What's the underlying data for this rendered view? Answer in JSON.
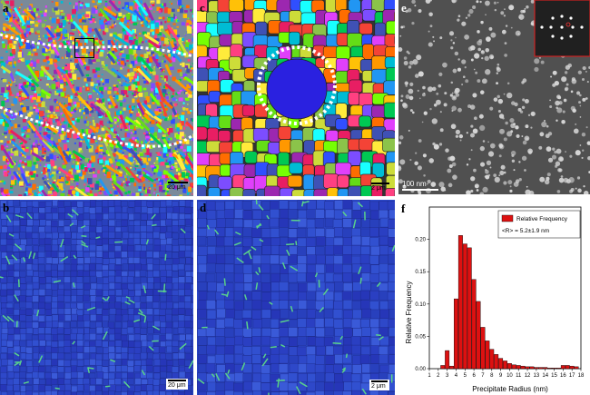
{
  "panels": {
    "a": {
      "label": "a",
      "scale_text": "20 μm"
    },
    "b": {
      "label": "b",
      "scale_text": "20 μm"
    },
    "c": {
      "label": "c",
      "scale_text": "2 μm"
    },
    "d": {
      "label": "d",
      "scale_text": "2 μm"
    },
    "e": {
      "label": "e",
      "scale_text": "100 nm"
    },
    "f": {
      "label": "f"
    }
  },
  "colors": {
    "histogram_bar": "#dd1111",
    "ipf_blue": "#2b47c8",
    "sem_gray": "#5a5a5a",
    "outline_dots": "#ffffff",
    "inset_border": "#cc2222"
  },
  "chart_data": {
    "type": "bar",
    "title": "",
    "xlabel": "Precipitate Radius (nm)",
    "ylabel": "Relative Frequency",
    "xlim": [
      1,
      18
    ],
    "ylim": [
      0,
      0.25
    ],
    "x_ticks": [
      "1",
      "2",
      "3",
      "4",
      "5",
      "6",
      "7",
      "8",
      "9",
      "10",
      "11",
      "12",
      "13",
      "14",
      "15",
      "16",
      "17",
      "18"
    ],
    "y_ticks": [
      "0.00",
      "0.05",
      "0.10",
      "0.15",
      "0.20"
    ],
    "legend": {
      "position": "top-right",
      "entry": "Relative Frequency",
      "annotation": "<R> = 5.2±1.9 nm"
    },
    "bins": [
      2.5,
      3,
      3.5,
      4,
      4.5,
      5,
      5.5,
      6,
      6.5,
      7,
      7.5,
      8,
      8.5,
      9,
      9.5,
      10,
      10.5,
      11,
      11.5,
      12,
      12.5,
      13,
      13.5,
      14,
      14.5,
      15,
      15.5,
      16,
      16.5,
      17,
      17.5
    ],
    "values": [
      0.005,
      0.028,
      0.004,
      0.108,
      0.206,
      0.193,
      0.187,
      0.138,
      0.104,
      0.064,
      0.043,
      0.03,
      0.022,
      0.016,
      0.012,
      0.008,
      0.006,
      0.005,
      0.004,
      0.003,
      0.003,
      0.002,
      0.002,
      0.002,
      0.001,
      0.001,
      0.001,
      0.005,
      0.005,
      0.004,
      0.003
    ]
  }
}
